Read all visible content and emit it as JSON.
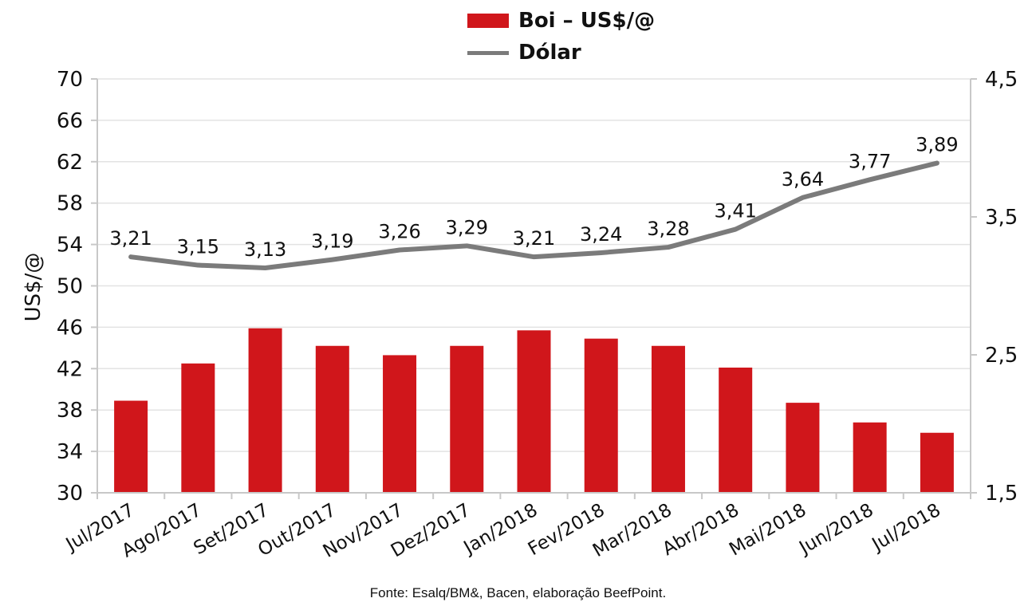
{
  "colors": {
    "bar": "#D0161B",
    "line": "#7B7B7B",
    "grid": "#e3e3e3",
    "axis": "#c8c8c8"
  },
  "legend": {
    "bar_label": "Boi – US$/@",
    "line_label": "Dólar"
  },
  "source": "Fonte: Esalq/BM&, Bacen, elaboração BeefPoint.",
  "chart_data": {
    "type": "bar",
    "categories": [
      "Jul/2017",
      "Ago/2017",
      "Set/2017",
      "Out/2017",
      "Nov/2017",
      "Dez/2017",
      "Jan/2018",
      "Fev/2018",
      "Mar/2018",
      "Abr/2018",
      "Mai/2018",
      "Jun/2018",
      "Jul/2018"
    ],
    "series": [
      {
        "name": "Boi – US$/@",
        "type": "bar",
        "axis": "left",
        "values": [
          38.9,
          42.5,
          45.9,
          44.2,
          43.3,
          44.2,
          45.7,
          44.9,
          44.2,
          42.1,
          38.7,
          36.8,
          35.8
        ]
      },
      {
        "name": "Dólar",
        "type": "line",
        "axis": "right",
        "values": [
          3.21,
          3.15,
          3.13,
          3.19,
          3.26,
          3.29,
          3.21,
          3.24,
          3.28,
          3.41,
          3.64,
          3.77,
          3.89
        ],
        "labels": [
          "3,21",
          "3,15",
          "3,13",
          "3,19",
          "3,26",
          "3,29",
          "3,21",
          "3,24",
          "3,28",
          "3,41",
          "3,64",
          "3,77",
          "3,89"
        ]
      }
    ],
    "ylabel": "US$/@",
    "ylim": [
      30,
      70
    ],
    "yticks": [
      "30",
      "34",
      "38",
      "42",
      "46",
      "50",
      "54",
      "58",
      "62",
      "66",
      "70"
    ],
    "y2lim": [
      1.5,
      4.5
    ],
    "y2ticks": [
      "1,5",
      "2,5",
      "3,5",
      "4,5"
    ],
    "grid": true,
    "legend_position": "top-center"
  }
}
